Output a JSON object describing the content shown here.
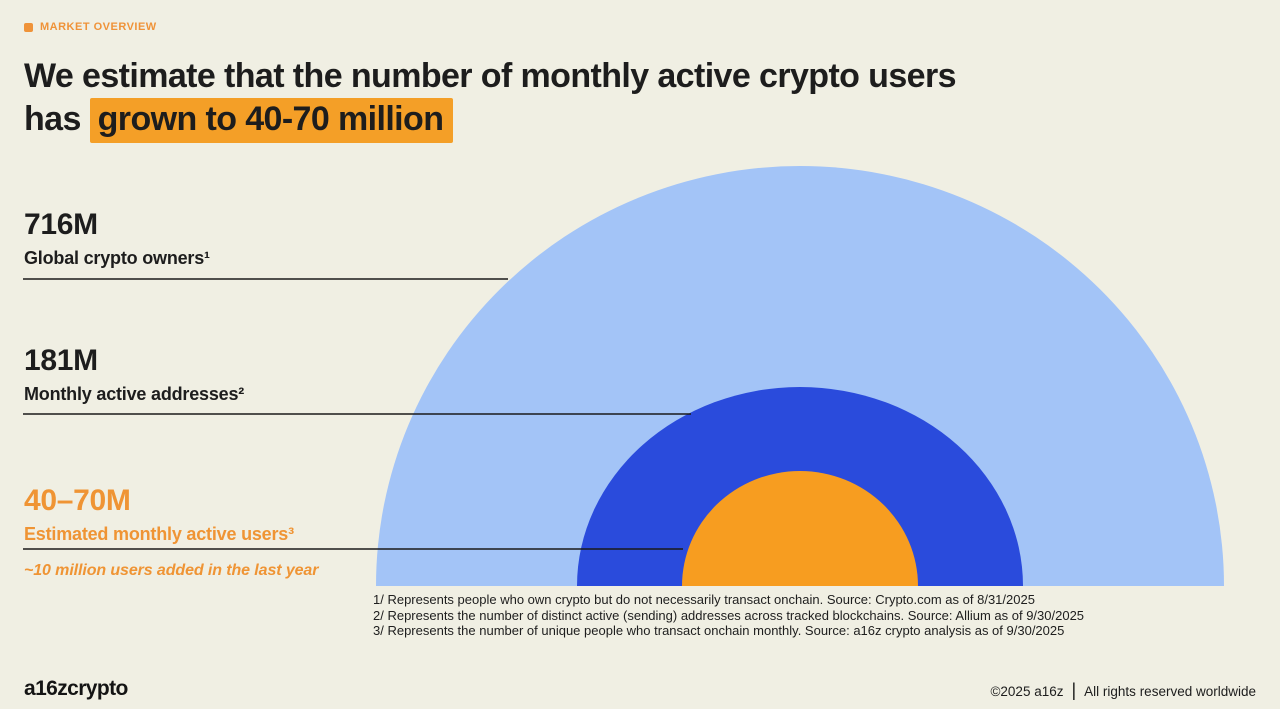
{
  "page": {
    "background": "#f0efe3"
  },
  "tag": {
    "label": "MARKET OVERVIEW",
    "color": "#ef9339"
  },
  "title": {
    "line1": "We estimate that the number of monthly active crypto users",
    "line2_prefix": "has ",
    "line2_highlight": "grown to 40-70 million",
    "highlight_color": "#f49f27",
    "text_color": "#1d1d1d"
  },
  "chart_data": {
    "type": "pie",
    "variant": "concentric-semicircles-proportional-area",
    "unit": "millions of people",
    "legend_position": "left",
    "grid": false,
    "series": [
      {
        "value_label": "716M",
        "value": 716,
        "label": "Global crypto owners¹",
        "color": "#a3c4f7",
        "text_color": "#1d1d1d"
      },
      {
        "value_label": "181M",
        "value": 181,
        "label": "Monthly active addresses²",
        "color": "#2a4bdc",
        "text_color": "#1d1d1d"
      },
      {
        "value_label": "40–70M",
        "value_range": [
          40,
          70
        ],
        "label": "Estimated monthly active users³",
        "color": "#f79d20",
        "text_color": "#ef9434"
      }
    ],
    "annotation": "~10 million users added in the last year"
  },
  "footnotes": [
    "1/ Represents people who own crypto but do not necessarily transact onchain. Source: Crypto.com as of 8/31/2025",
    "2/ Represents the number of distinct active (sending) addresses across tracked blockchains. Source: Allium as of 9/30/2025",
    "3/ Represents the number of unique people who transact onchain monthly. Source: a16z crypto analysis as of 9/30/2025"
  ],
  "footer": {
    "logo": "a16zcrypto",
    "copyright": "©2025 a16z",
    "separator": "|",
    "rights": "All rights reserved worldwide"
  }
}
